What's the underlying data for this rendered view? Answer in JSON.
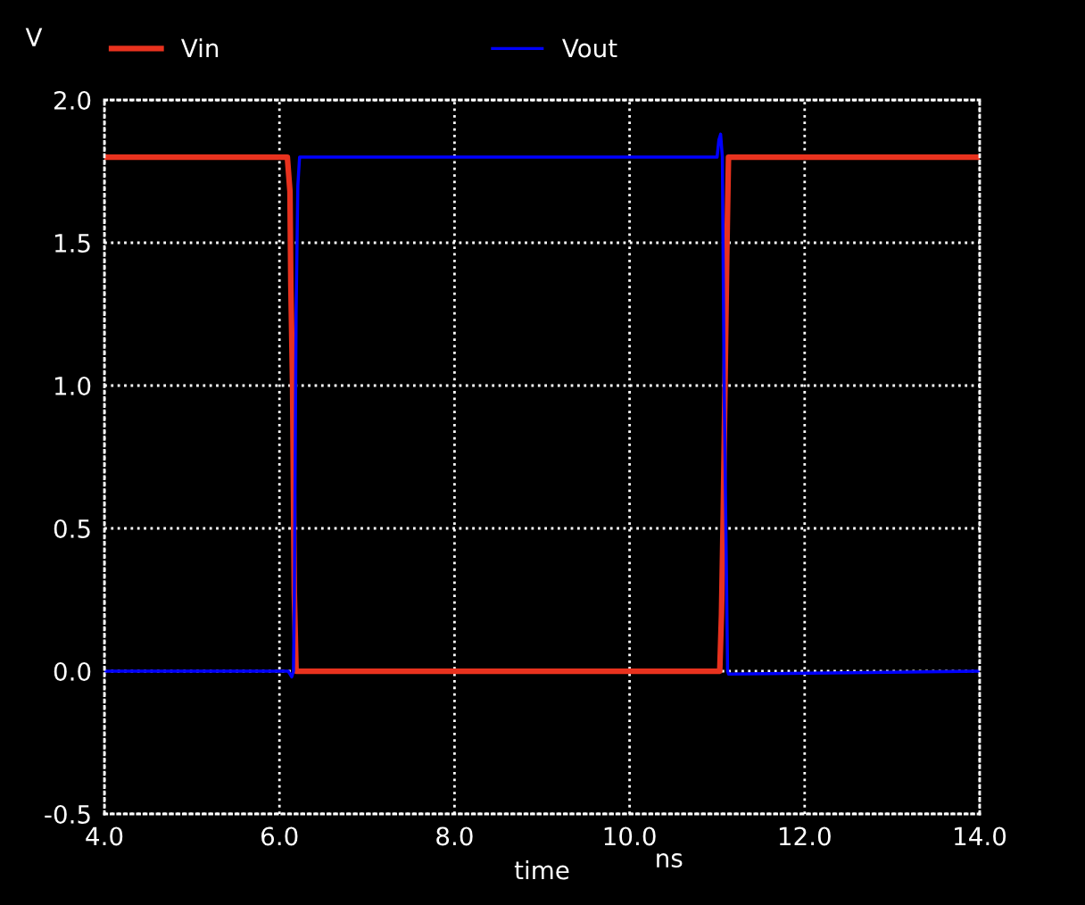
{
  "chart_data": {
    "type": "line",
    "ylabel": "V",
    "xlabel": "time",
    "annotations": [
      "ns"
    ],
    "legend": "top",
    "grid": true,
    "line_style": "solid",
    "marker": "none",
    "xlim": [
      4,
      14
    ],
    "ylim": [
      -0.5,
      2
    ],
    "xticks": [
      {
        "value": 4,
        "label": "4.0"
      },
      {
        "value": 6,
        "label": "6.0"
      },
      {
        "value": 8,
        "label": "8.0"
      },
      {
        "value": 10,
        "label": "10.0"
      },
      {
        "value": 12,
        "label": "12.0"
      },
      {
        "value": 14,
        "label": "14.0"
      }
    ],
    "yticks": [
      -0.5,
      {
        "value": 0,
        "label": "0.0"
      },
      0.5,
      {
        "value": 1,
        "label": "1.0"
      },
      1.5,
      {
        "value": 2,
        "label": "2.0"
      }
    ],
    "series": [
      {
        "name": "Vin",
        "color": "#e8321e",
        "x": [
          4,
          6.09,
          6.12,
          6.13,
          6.15,
          6.16,
          6.17,
          6.19,
          11.03,
          11.05,
          11.07,
          11.09,
          11.11,
          11.13,
          14
        ],
        "values": [
          1.8,
          1.8,
          1.68,
          1.35,
          1.0,
          0.63,
          0.27,
          0.0,
          0.0,
          0.2,
          0.55,
          1.0,
          1.45,
          1.8,
          1.8
        ]
      },
      {
        "name": "Vout",
        "color": "#0000ff",
        "x": [
          4,
          6.1,
          6.14,
          6.16,
          6.17,
          6.19,
          6.21,
          6.23,
          11.0,
          11.02,
          11.04,
          11.06,
          11.08,
          11.1,
          11.12,
          11.13,
          14
        ],
        "values": [
          0,
          0,
          -0.02,
          0.0,
          0.25,
          1.25,
          1.7,
          1.8,
          1.8,
          1.86,
          1.88,
          1.8,
          1.0,
          0.5,
          0.0,
          -0.01,
          0
        ]
      }
    ]
  }
}
